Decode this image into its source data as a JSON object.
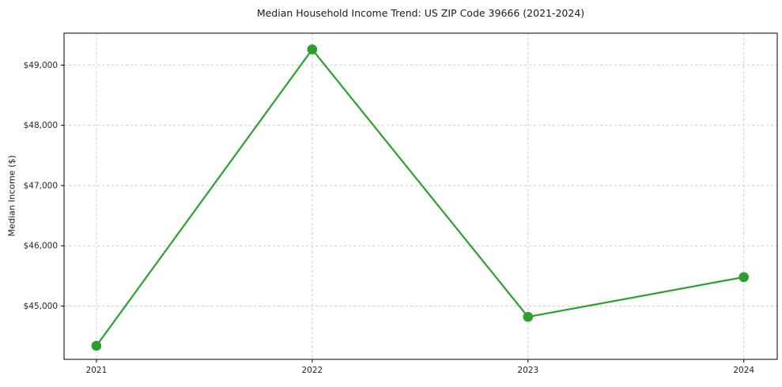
{
  "chart_data": {
    "type": "line",
    "title": "Median Household Income Trend: US ZIP Code 39666 (2021-2024)",
    "xlabel": "",
    "ylabel": "Median Income ($)",
    "categories": [
      "2021",
      "2022",
      "2023",
      "2024"
    ],
    "x": [
      2021,
      2022,
      2023,
      2024
    ],
    "series": [
      {
        "name": "Median Household Income",
        "values": [
          44340,
          49260,
          44820,
          45480
        ]
      }
    ],
    "y_ticks": [
      45000,
      46000,
      47000,
      48000,
      49000
    ],
    "y_tick_labels": [
      "$45,000",
      "$46,000",
      "$47,000",
      "$48,000",
      "$49,000"
    ],
    "xlim": [
      2020.85,
      2024.155
    ],
    "ylim": [
      44115,
      49530
    ],
    "grid": true,
    "grid_style": "dashed",
    "legend": false,
    "line_color": "#2ca02c",
    "marker": "circle",
    "marker_radius": 6.3,
    "line_width": 2.2,
    "background_color": "#ffffff",
    "text_color": "#262626",
    "grid_color": "#cccccc",
    "spine_color": "#000000"
  }
}
